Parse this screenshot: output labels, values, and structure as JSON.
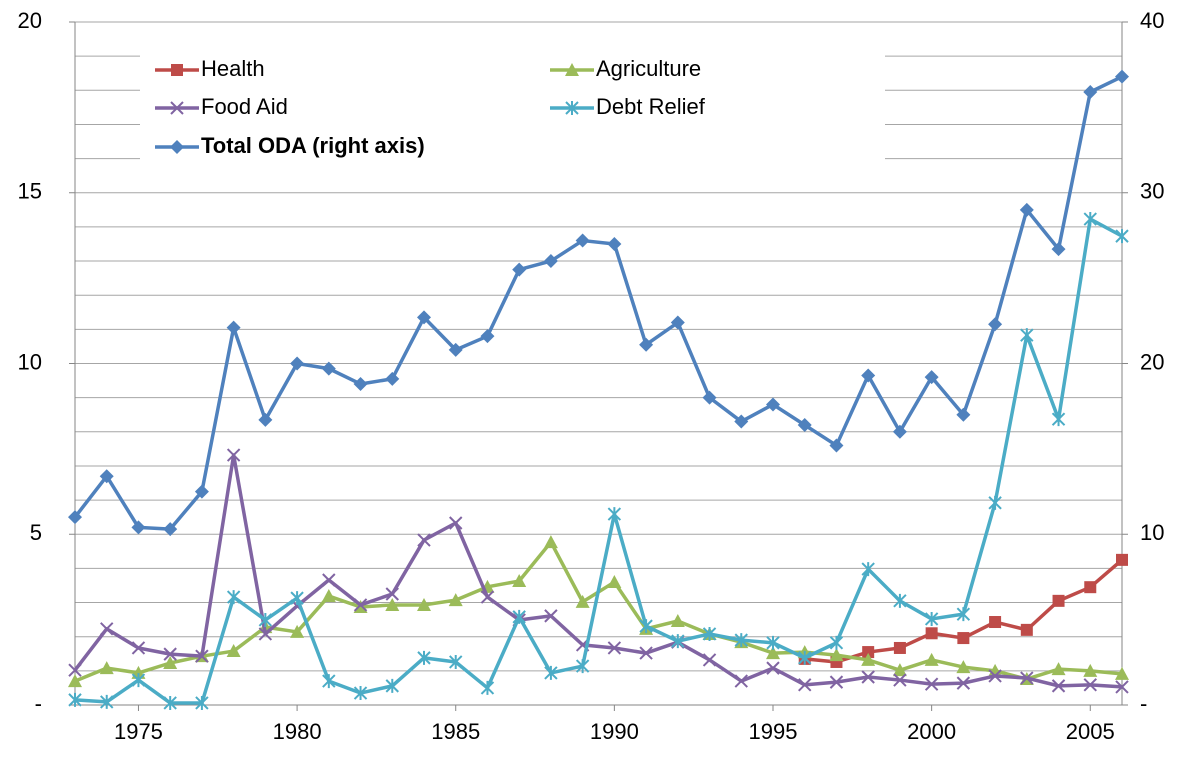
{
  "chart_data": {
    "type": "line",
    "x": [
      1973,
      1974,
      1975,
      1976,
      1977,
      1978,
      1979,
      1980,
      1981,
      1982,
      1983,
      1984,
      1985,
      1986,
      1987,
      1988,
      1989,
      1990,
      1991,
      1992,
      1993,
      1994,
      1995,
      1996,
      1997,
      1998,
      1999,
      2000,
      2001,
      2002,
      2003,
      2004,
      2005,
      2006
    ],
    "xlim": [
      1973,
      2006
    ],
    "xticks": [
      1975,
      1980,
      1985,
      1990,
      1995,
      2000,
      2005
    ],
    "ylim": [
      0,
      20
    ],
    "yticks": [
      {
        "value": 0,
        "label": "-"
      },
      5,
      10,
      15,
      20
    ],
    "y2lim": [
      0,
      40
    ],
    "y2ticks": [
      {
        "value": 0,
        "label": "-"
      },
      10,
      20,
      30,
      40
    ],
    "grid": true,
    "ygrid": [
      1,
      2,
      3,
      4,
      5,
      6,
      7,
      8,
      9,
      10,
      11,
      12,
      13,
      14,
      15,
      16,
      17,
      18,
      19,
      20
    ],
    "legend": "top-left",
    "series": [
      {
        "name": "Health",
        "color": "#be4b48",
        "marker": "square",
        "values": [
          null,
          null,
          null,
          null,
          null,
          null,
          null,
          null,
          null,
          null,
          null,
          null,
          null,
          null,
          null,
          null,
          null,
          null,
          null,
          null,
          null,
          null,
          null,
          1.35,
          1.26,
          1.55,
          1.67,
          2.1,
          1.96,
          2.43,
          2.2,
          3.05,
          3.45,
          4.25
        ]
      },
      {
        "name": "Agriculture",
        "color": "#9bbb59",
        "marker": "triangle",
        "values": [
          0.7,
          1.08,
          0.94,
          1.23,
          1.43,
          1.58,
          2.28,
          2.14,
          3.19,
          2.87,
          2.93,
          2.93,
          3.07,
          3.46,
          3.63,
          4.77,
          3.02,
          3.6,
          2.23,
          2.46,
          2.08,
          1.84,
          1.52,
          1.55,
          1.46,
          1.32,
          1.02,
          1.32,
          1.11,
          1.0,
          0.76,
          1.05,
          1.0,
          0.91
        ]
      },
      {
        "name": "Food Aid",
        "color": "#8064a2",
        "marker": "x",
        "values": [
          1.02,
          2.23,
          1.67,
          1.49,
          1.43,
          7.32,
          2.08,
          2.9,
          3.66,
          2.93,
          3.25,
          4.83,
          5.33,
          3.16,
          2.49,
          2.61,
          1.76,
          1.67,
          1.52,
          1.84,
          1.32,
          0.7,
          1.08,
          0.59,
          0.67,
          0.82,
          0.73,
          0.61,
          0.64,
          0.85,
          0.79,
          0.56,
          0.59,
          0.53
        ]
      },
      {
        "name": "Debt Relief",
        "color": "#4bacc6",
        "marker": "asterisk",
        "values": [
          0.15,
          0.09,
          0.73,
          0.06,
          0.06,
          3.16,
          2.49,
          3.13,
          0.7,
          0.35,
          0.56,
          1.38,
          1.26,
          0.5,
          2.58,
          0.94,
          1.14,
          5.59,
          2.31,
          1.87,
          2.08,
          1.9,
          1.82,
          1.38,
          1.82,
          3.98,
          3.05,
          2.52,
          2.66,
          5.92,
          10.83,
          8.37,
          14.23,
          13.73
        ]
      },
      {
        "name": "Total ODA (right axis)",
        "color": "#4f81bd",
        "marker": "diamond",
        "axis": "y2",
        "values": [
          11.0,
          13.4,
          10.4,
          10.3,
          12.5,
          22.1,
          16.7,
          20.0,
          19.7,
          18.8,
          19.1,
          22.7,
          20.8,
          21.6,
          25.5,
          26.0,
          27.2,
          27.0,
          21.1,
          22.4,
          18.0,
          16.6,
          17.6,
          16.4,
          15.2,
          19.3,
          16.0,
          19.2,
          17.0,
          22.3,
          29.0,
          26.7,
          35.9,
          36.8
        ]
      }
    ]
  }
}
